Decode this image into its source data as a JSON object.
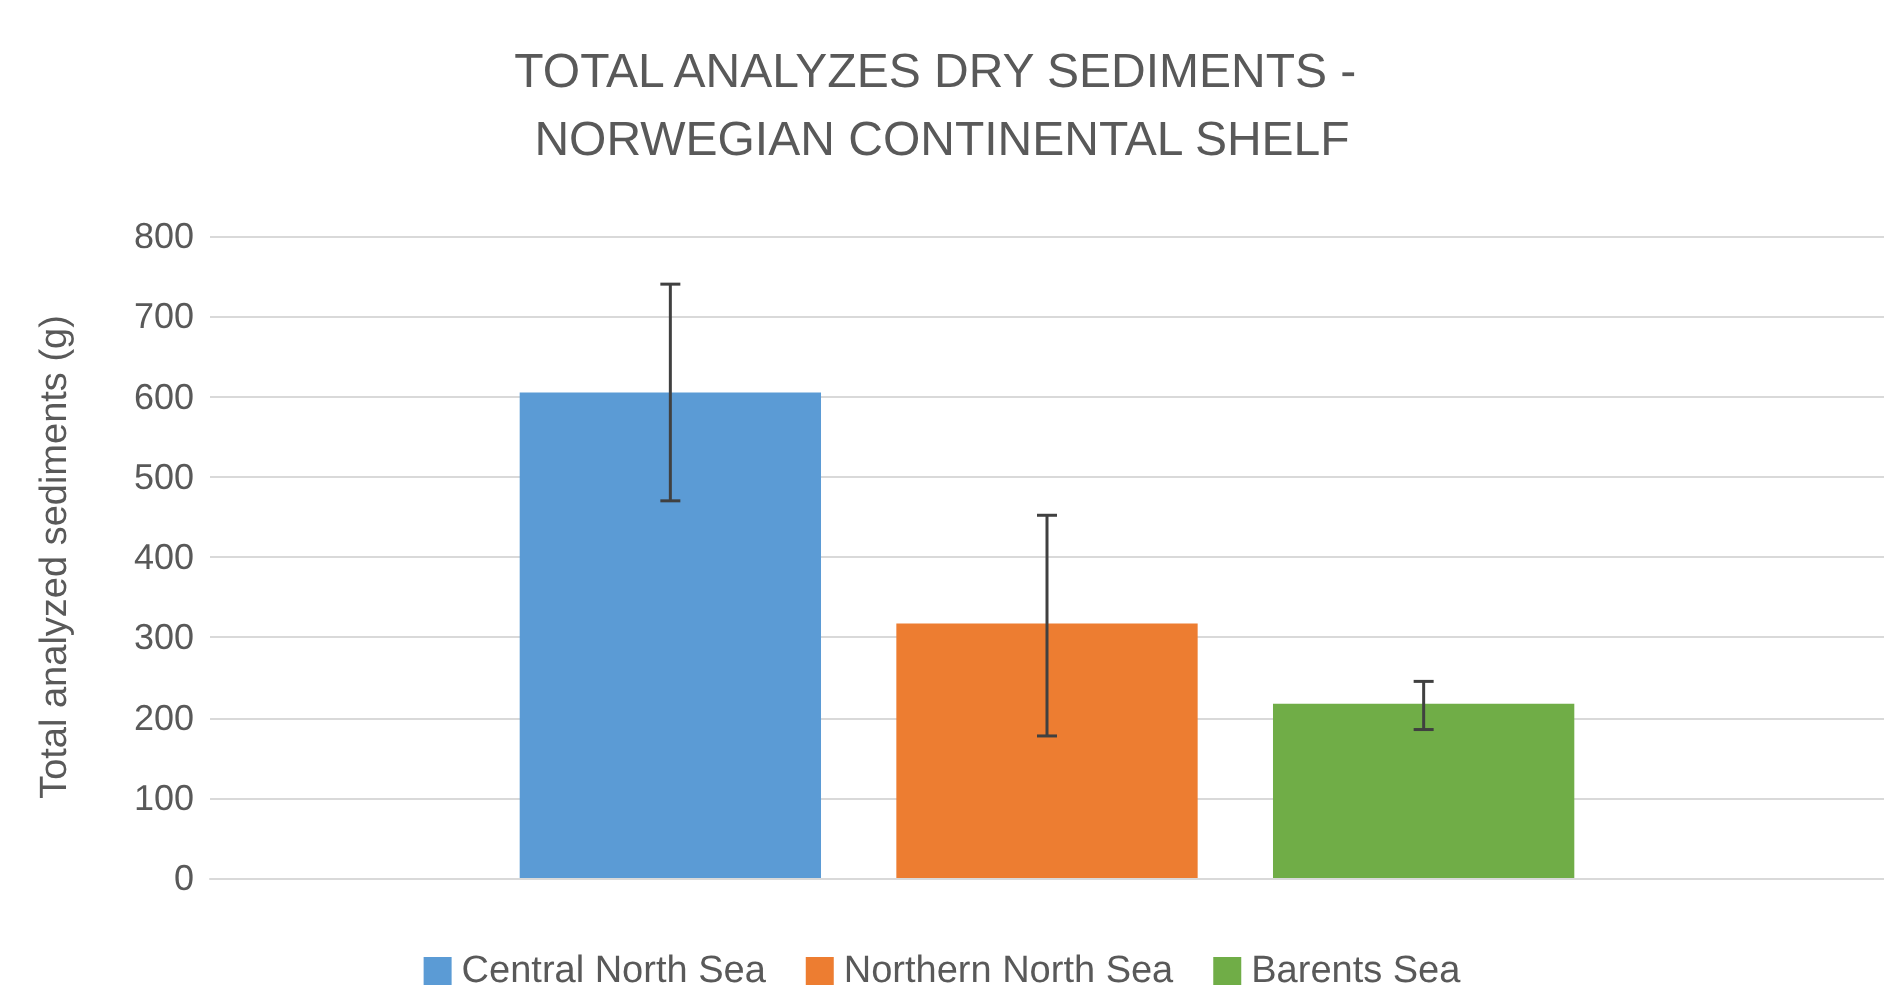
{
  "chart_data": {
    "type": "bar",
    "title": "TOTAL ANALYZES DRY SEDIMENTS - NORWEGIAN CONTINENTAL SHELF",
    "ylabel": "Total analyzed sediments (g)",
    "categories": [
      null
    ],
    "series": [
      {
        "name": "Central North Sea",
        "color": "#5b9bd5",
        "values": [
          605
        ],
        "errors": [
          [
            470,
            740
          ]
        ]
      },
      {
        "name": "Northern North Sea",
        "color": "#ed7d31",
        "values": [
          317
        ],
        "errors": [
          [
            177,
            452
          ]
        ]
      },
      {
        "name": "Barents Sea",
        "color": "#70ad47",
        "values": [
          217
        ],
        "errors": [
          [
            185,
            245
          ]
        ]
      }
    ],
    "ylim": [
      0,
      800
    ],
    "yticks": [
      0,
      100,
      200,
      300,
      400,
      500,
      600,
      700,
      800
    ],
    "grid": "y",
    "legend": "bottom"
  }
}
